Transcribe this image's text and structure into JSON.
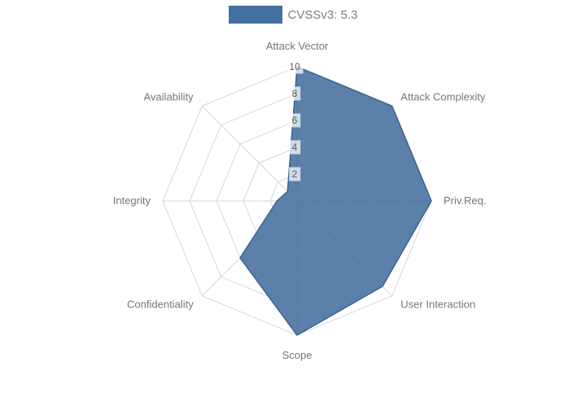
{
  "legend": {
    "label": "CVSSv3: 5.3"
  },
  "chart_data": {
    "type": "radar",
    "title": "CVSSv3: 5.3",
    "categories": [
      "Attack Vector",
      "Attack Complexity",
      "Priv.Req.",
      "User Interaction",
      "Scope",
      "Confidentiality",
      "Integrity",
      "Availability"
    ],
    "series": [
      {
        "name": "CVSSv3: 5.3",
        "values": [
          10,
          10,
          10,
          9,
          10,
          6,
          1.5,
          1
        ]
      }
    ],
    "ticks": [
      "2",
      "4",
      "6",
      "8",
      "10"
    ],
    "tick_values": [
      2,
      4,
      6,
      8,
      10
    ],
    "rlim": [
      0,
      10
    ],
    "grid": true,
    "legend_position": "top-center",
    "colors": {
      "fill": "#44709f",
      "fill_opacity": "0.88",
      "stroke": "#3a638f",
      "grid": "#d6d6d6",
      "axis_label": "#757575",
      "tick_text": "#5c5c5c",
      "tick_bg": "rgba(255,255,255,0.72)",
      "swatch": "#44709f"
    }
  }
}
